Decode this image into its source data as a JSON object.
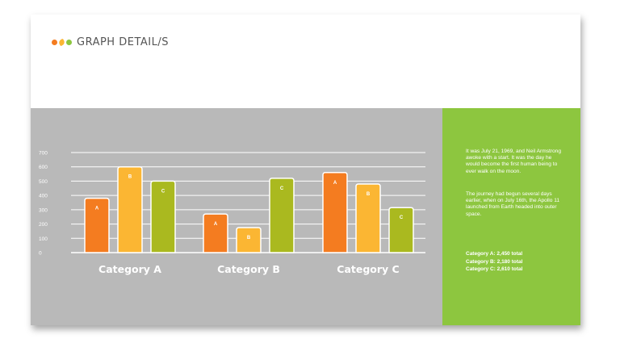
{
  "header": {
    "title": "GRAPH DETAIL/S",
    "logo_icons": [
      "orange-dot-icon",
      "yellow-leaf-icon",
      "green-dot-icon"
    ]
  },
  "colors": {
    "A": "#f47c20",
    "B": "#fbb633",
    "C": "#aab91f",
    "panel_gray": "#b9b9b9",
    "panel_green": "#8dc63f"
  },
  "side_panel": {
    "paragraph1": "It was July 21, 1969, and Neil Armstrong awoke with a start. It was the day he would become the first human being to ever walk on the moon.",
    "paragraph2": "The journey had begun several days earlier, when on July 16th, the Apollo 11 launched from Earth headed into outer space.",
    "totals": [
      "Category A: 2,450 total",
      "Category B: 2,180 total",
      "Category C: 2,610 total"
    ]
  },
  "chart_data": {
    "type": "bar",
    "categories": [
      "Category A",
      "Category B",
      "Category C"
    ],
    "series": [
      {
        "name": "A",
        "values": [
          380,
          270,
          560
        ]
      },
      {
        "name": "B",
        "values": [
          600,
          175,
          480
        ]
      },
      {
        "name": "C",
        "values": [
          500,
          520,
          315
        ]
      }
    ],
    "yticks": [
      0,
      100,
      200,
      300,
      400,
      500,
      600,
      700
    ],
    "ylim": [
      0,
      700
    ],
    "grid": true,
    "title": "",
    "xlabel": "",
    "ylabel": ""
  }
}
